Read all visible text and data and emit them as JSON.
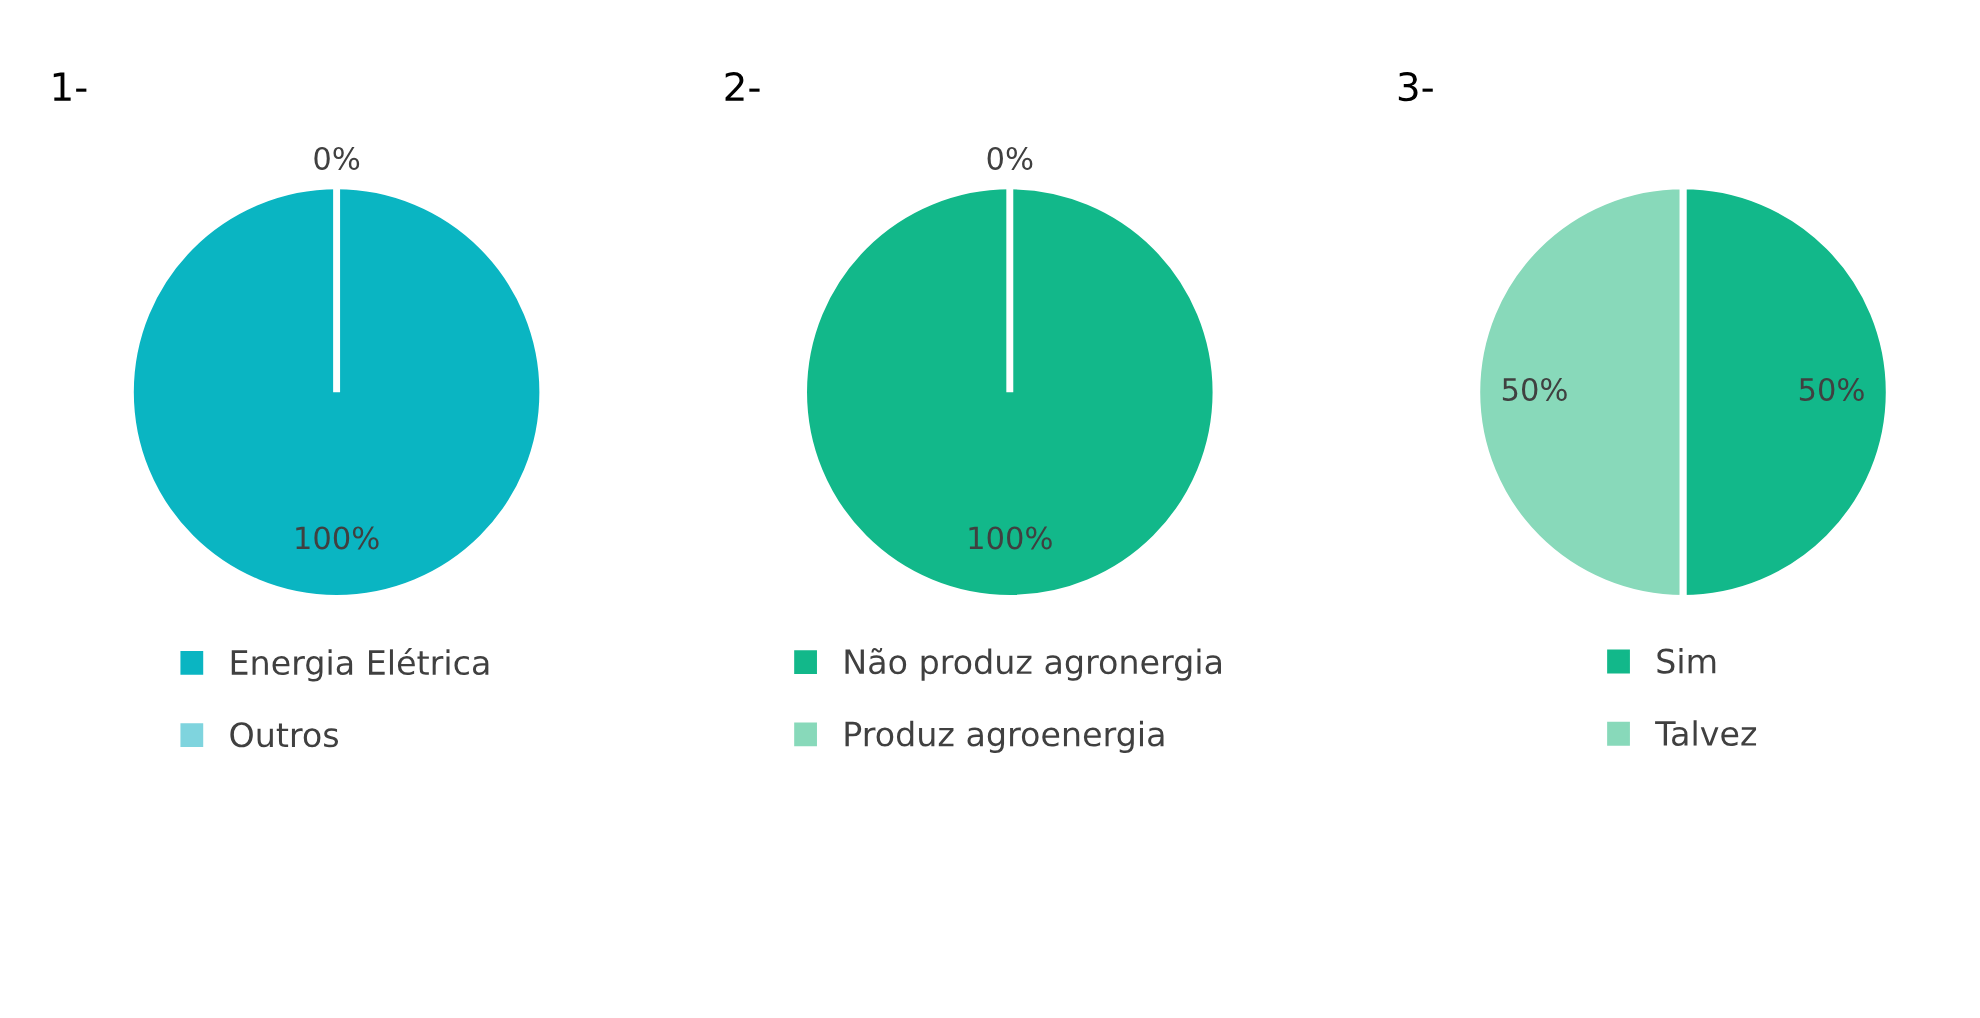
{
  "chart_data": [
    {
      "type": "pie",
      "title": "1-",
      "categories": [
        "Energia Elétrica",
        "Outros"
      ],
      "values": [
        100,
        0
      ],
      "value_labels": [
        "100%",
        "0%"
      ],
      "colors": [
        "#0ab5c2",
        "#7fd4de"
      ],
      "legend": "bottom"
    },
    {
      "type": "pie",
      "title": "2-",
      "categories": [
        "Não produz agronergia",
        "Produz agroenergia"
      ],
      "values": [
        100,
        0
      ],
      "value_labels": [
        "100%",
        "0%"
      ],
      "colors": [
        "#12b88a",
        "#88d9ba"
      ],
      "legend": "bottom"
    },
    {
      "type": "pie",
      "title": "3-",
      "categories": [
        "Sim",
        "Talvez"
      ],
      "values": [
        50,
        50
      ],
      "value_labels": [
        "50%",
        "50%"
      ],
      "colors": [
        "#12b88a",
        "#88d9ba"
      ],
      "legend": "bottom"
    }
  ]
}
